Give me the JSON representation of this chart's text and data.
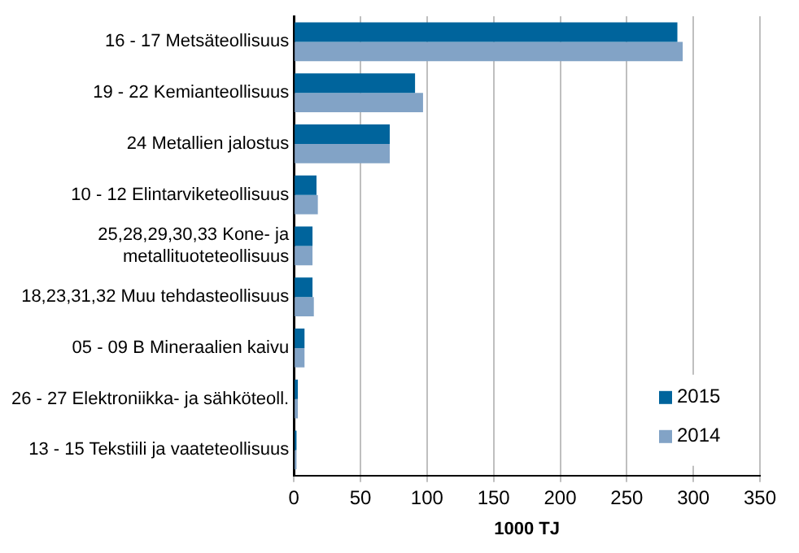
{
  "chart_data": {
    "type": "bar",
    "orientation": "horizontal",
    "xlabel": "1000 TJ",
    "categories": [
      "16 - 17 Metsäteollisuus",
      "19 - 22 Kemianteollisuus",
      "24 Metallien jalostus",
      "10 - 12 Elintarviketeollisuus",
      "25,28,29,30,33 Kone- ja metallituoteteollisuus",
      "18,23,31,32 Muu tehdasteollisuus",
      "05 - 09 B Mineraalien kaivu",
      "26 - 27 Elektroniikka- ja sähköteoll.",
      "13 - 15 Tekstiili ja vaateteollisuus"
    ],
    "series": [
      {
        "name": "2015",
        "color": "#00649c",
        "values": [
          288,
          91,
          72,
          17,
          14,
          14,
          8,
          3,
          2
        ]
      },
      {
        "name": "2014",
        "color": "#82a3c6",
        "values": [
          292,
          97,
          72,
          18,
          14,
          15,
          8,
          3,
          2
        ]
      }
    ],
    "xlim": [
      0,
      350
    ],
    "xticks": [
      0,
      50,
      100,
      150,
      200,
      250,
      300,
      350
    ],
    "grid": "x",
    "legend": "bottom right"
  }
}
